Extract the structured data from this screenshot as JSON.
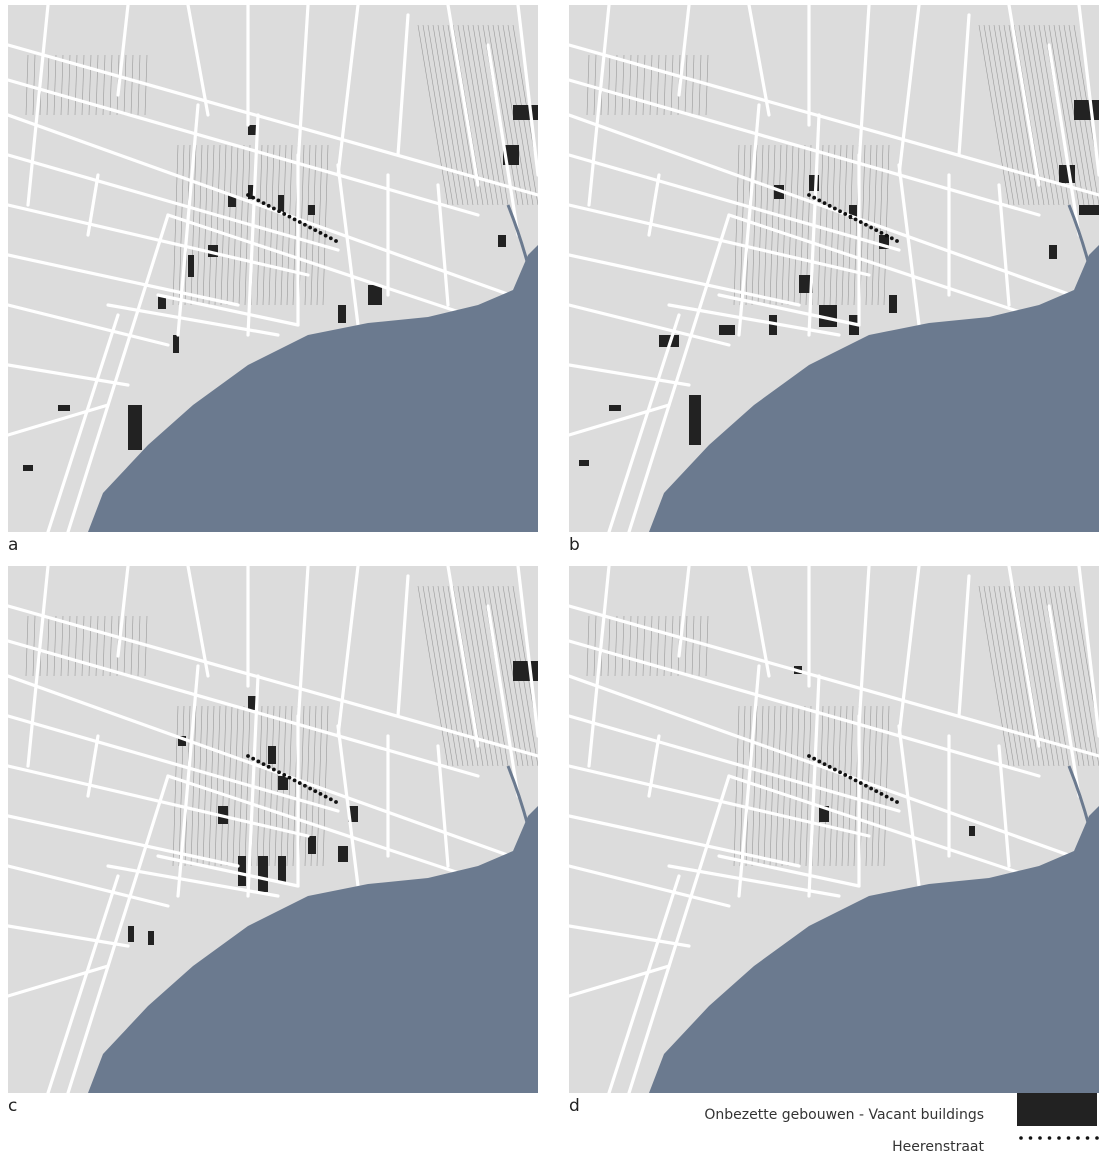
{
  "panels": [
    {
      "label": "a"
    },
    {
      "label": "b"
    },
    {
      "label": "c"
    },
    {
      "label": "d"
    }
  ],
  "legend": {
    "vacant_label": "Onbezette gebouwen - Vacant buildings",
    "street_label": "Heerenstraat"
  },
  "colors": {
    "land": "#dcdcdc",
    "water": "#6b7a8f",
    "roads": "#ffffff",
    "vacant": "#222222",
    "street_dots": "#111111"
  }
}
